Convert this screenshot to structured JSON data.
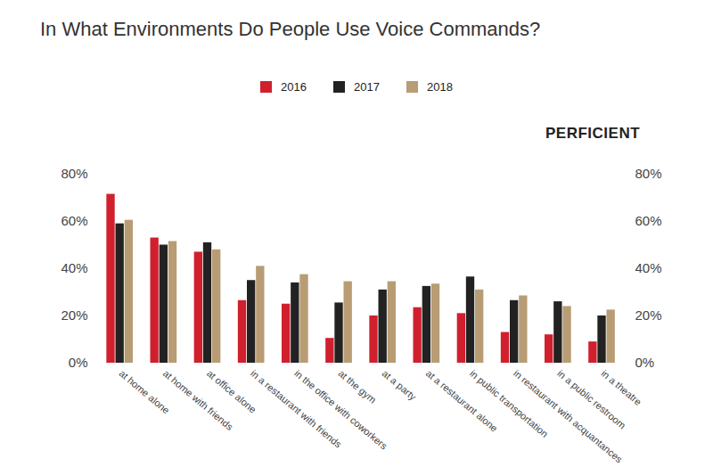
{
  "chart_data": {
    "type": "bar",
    "title": "In What Environments Do People Use Voice Commands?",
    "annotations": [
      "PERFICIENT"
    ],
    "categories": [
      "at home alone",
      "at home with friends",
      "at office alone",
      "in a restaurant with friends",
      "in the office with coworkers",
      "at the gym",
      "at a party",
      "at a restaurant alone",
      "in public transportation",
      "in restaurant with acquantances",
      "in a public restroom",
      "in a theatre"
    ],
    "series": [
      {
        "name": "2016",
        "color": "#d0202e",
        "values": [
          71.5,
          53,
          47,
          26.5,
          25,
          10.5,
          20,
          23.5,
          21,
          13,
          12,
          9
        ]
      },
      {
        "name": "2017",
        "color": "#222222",
        "values": [
          59,
          50,
          51,
          35,
          34,
          25.5,
          31,
          32.5,
          36.5,
          26.5,
          26,
          20
        ]
      },
      {
        "name": "2018",
        "color": "#b89c74",
        "values": [
          60.5,
          51.5,
          48,
          41,
          37.5,
          34.5,
          34.5,
          33.5,
          31,
          28.5,
          24,
          22.5
        ]
      }
    ],
    "ylim": [
      0,
      80
    ],
    "yticks": [
      {
        "value": 0,
        "label": "0%"
      },
      {
        "value": 20,
        "label": "20%"
      },
      {
        "value": 40,
        "label": "40%"
      },
      {
        "value": 60,
        "label": "60%"
      },
      {
        "value": 80,
        "label": "80%"
      }
    ],
    "grid": false
  }
}
